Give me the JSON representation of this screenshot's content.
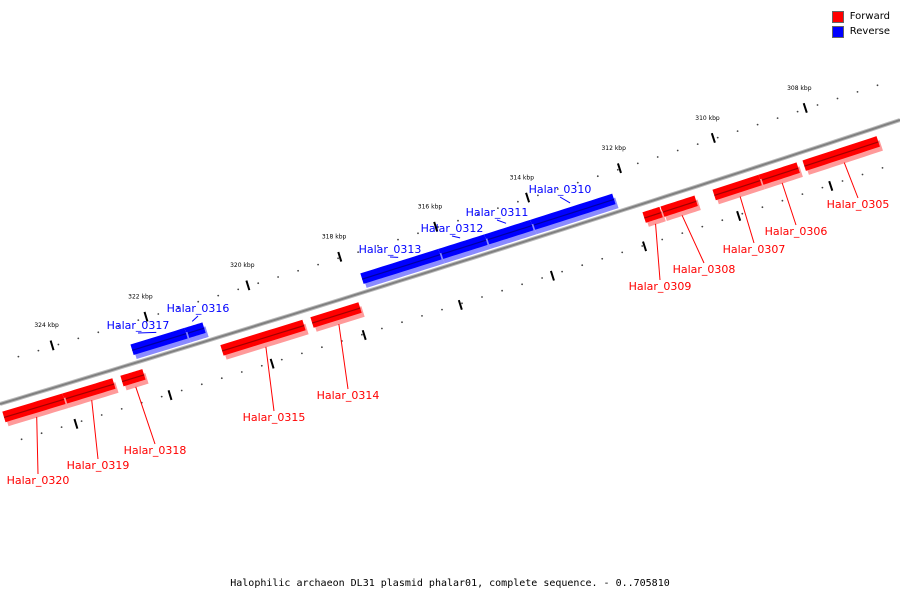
{
  "legend": [
    {
      "label": "Forward",
      "color": "#ff0000"
    },
    {
      "label": "Reverse",
      "color": "#0000ff"
    }
  ],
  "colors": {
    "forward": "#ff0000",
    "reverse": "#0000ff",
    "backbone": "#808080"
  },
  "caption": "Halophilic archaeon DL31 plasmid phalar01, complete sequence. - 0..705810",
  "ticks": [
    "308 kbp",
    "310 kbp",
    "312 kbp",
    "314 kbp",
    "316 kbp",
    "318 kbp",
    "320 kbp",
    "322 kbp",
    "324 kbp"
  ],
  "genes": [
    {
      "name": "Halar_0305",
      "strand": "forward"
    },
    {
      "name": "Halar_0306",
      "strand": "forward"
    },
    {
      "name": "Halar_0307",
      "strand": "forward"
    },
    {
      "name": "Halar_0308",
      "strand": "forward"
    },
    {
      "name": "Halar_0309",
      "strand": "forward"
    },
    {
      "name": "Halar_0310",
      "strand": "reverse"
    },
    {
      "name": "Halar_0311",
      "strand": "reverse"
    },
    {
      "name": "Halar_0312",
      "strand": "reverse"
    },
    {
      "name": "Halar_0313",
      "strand": "reverse"
    },
    {
      "name": "Halar_0314",
      "strand": "forward"
    },
    {
      "name": "Halar_0315",
      "strand": "forward"
    },
    {
      "name": "Halar_0316",
      "strand": "reverse"
    },
    {
      "name": "Halar_0317",
      "strand": "reverse"
    },
    {
      "name": "Halar_0318",
      "strand": "forward"
    },
    {
      "name": "Halar_0319",
      "strand": "forward"
    },
    {
      "name": "Halar_0320",
      "strand": "forward"
    }
  ]
}
